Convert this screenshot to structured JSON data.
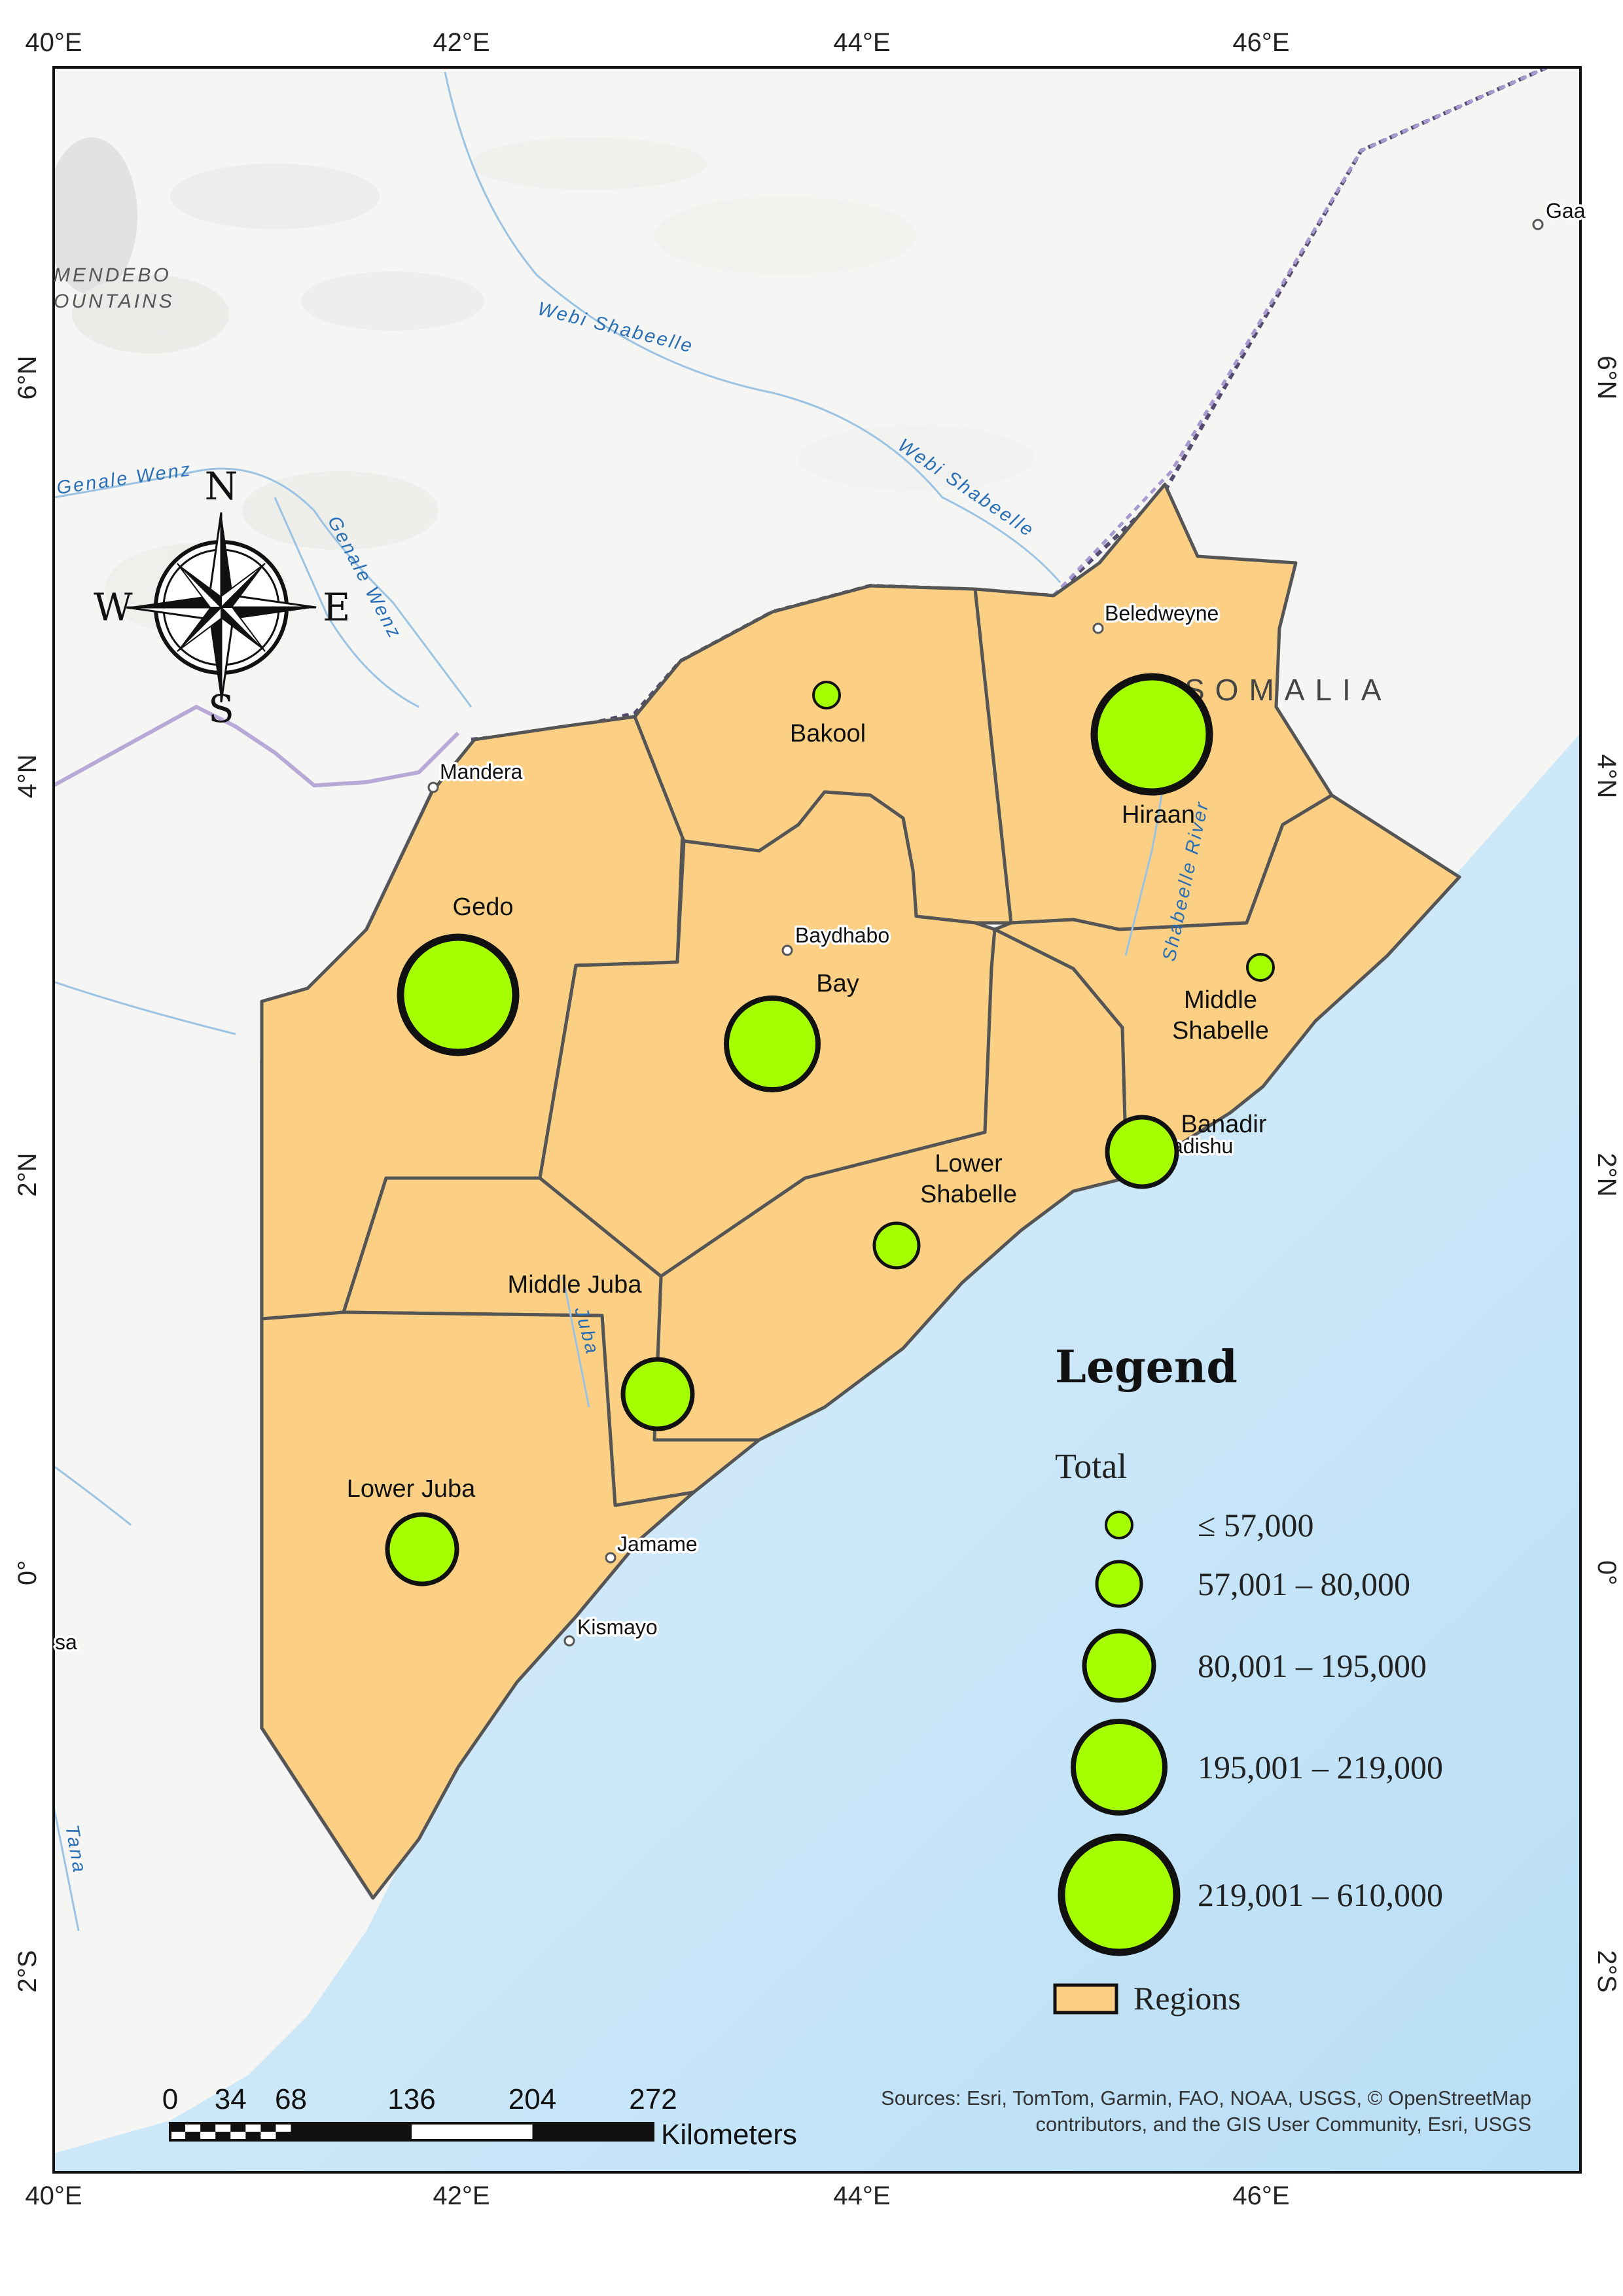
{
  "graticule": {
    "top_labels": [
      "40°E",
      "42°E",
      "44°E",
      "46°E"
    ],
    "bottom_labels": [
      "40°E",
      "42°E",
      "44°E",
      "46°E"
    ],
    "left_labels": [
      "6°N",
      "4°N",
      "2°N",
      "0°",
      "2°S"
    ],
    "right_labels": [
      "6°N",
      "4°N",
      "2°N",
      "0°",
      "2°S"
    ]
  },
  "compass": {
    "n": "N",
    "s": "S",
    "e": "E",
    "w": "W"
  },
  "country_label": "SOMALIA",
  "relief_labels": [
    "MENDEBO",
    "OUNTAINS"
  ],
  "rivers": {
    "webi_shabeelle_1": "Webi Shabeelle",
    "webi_shabeelle_2": "Webi Shabeelle",
    "genale_wenz_1": "Genale Wenz",
    "genale_wenz_2": "Genale Wenz",
    "shabeelle_river": "Shabeelle River",
    "juba": "Juba",
    "tana": "Tana"
  },
  "places": {
    "mandera": "Mandera",
    "beledweyne": "Beledweyne",
    "baydhabo": "Baydhabo",
    "jamame": "Jamame",
    "kismayo": "Kismayo",
    "mogadishu": "adishu",
    "gaa": "Gaa",
    "sa": "sa"
  },
  "regions": [
    {
      "name": "Gedo",
      "label": "Gedo",
      "class": 4
    },
    {
      "name": "Bakool",
      "label": "Bakool",
      "class": 0
    },
    {
      "name": "Hiraan",
      "label": "Hiraan",
      "class": 4
    },
    {
      "name": "Bay",
      "label": "Bay",
      "class": 3
    },
    {
      "name": "Middle Shabelle",
      "label_line1": "Middle",
      "label_line2": "Shabelle",
      "class": 0
    },
    {
      "name": "Banadir",
      "label": "Banadir",
      "class": 2
    },
    {
      "name": "Lower Shabelle",
      "label_line1": "Lower",
      "label_line2": "Shabelle",
      "class": 1
    },
    {
      "name": "Middle Juba",
      "label": "Middle Juba",
      "class": 2
    },
    {
      "name": "Lower Juba",
      "label": "Lower Juba",
      "class": 2
    }
  ],
  "legend": {
    "title": "Legend",
    "field": "Total",
    "classes": [
      "≤ 57,000",
      "57,001 – 80,000",
      "80,001 – 195,000",
      "195,001 – 219,000",
      "219,001 – 610,000"
    ],
    "regions_label": "Regions"
  },
  "scale_bar": {
    "ticks": [
      "0",
      "34",
      "68",
      "136",
      "204",
      "272"
    ],
    "unit": "Kilometers"
  },
  "sources": {
    "line1": "Sources: Esri, TomTom, Garmin, FAO, NOAA, USGS, © OpenStreetMap",
    "line2": "contributors, and the GIS User Community, Esri, USGS"
  },
  "colors": {
    "region_fill": "#fbd084",
    "symbol_fill": "#a6ff00",
    "ocean": "#cfe9f9",
    "land": "#f4f4f2",
    "river": "#8fb8da"
  }
}
